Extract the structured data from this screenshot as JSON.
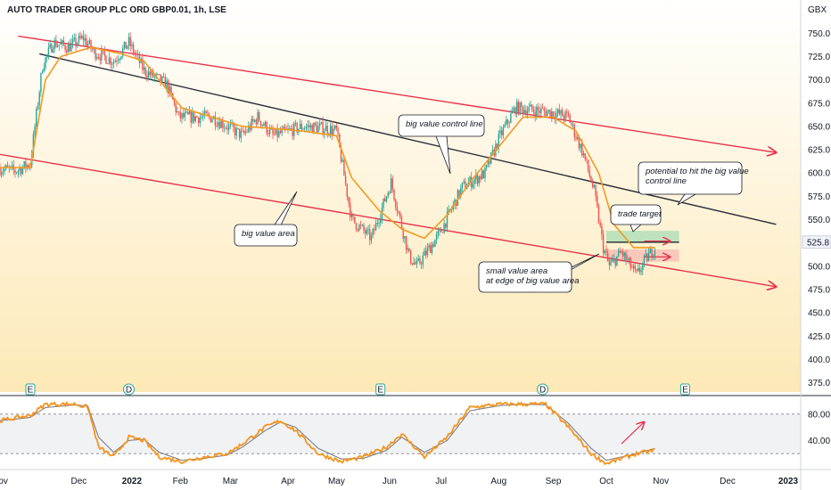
{
  "title": "AUTO TRADER GROUP PLC ORD GBP0.01, 1h, LSE",
  "currency": "GBX",
  "price_label": "525.8",
  "colors": {
    "up": "#26a69a",
    "down": "#ef5350",
    "ma": "#f29a1f",
    "channel": "#e8314c",
    "control_line": "#2a2e39",
    "stoch_k": "#f7931a",
    "stoch_d": "#7a7f8a",
    "bg_top": "#ffffff",
    "bg_bottom": "#fde9b6"
  },
  "chart_data": [
    {
      "type": "line",
      "title": "AUTO TRADER GROUP PLC ORD GBP0.01, 1h, LSE",
      "ylabel": "GBX",
      "ylim": [
        365,
        780
      ],
      "yticks": [
        750.0,
        725.0,
        700.0,
        675.0,
        650.0,
        625.0,
        600.0,
        575.0,
        550.0,
        525.0,
        500.0,
        475.0,
        450.0,
        425.0,
        400.0,
        375.0
      ],
      "x_tick_labels": [
        "Nov",
        "Dec",
        "2022",
        "Feb",
        "Mar",
        "Apr",
        "May",
        "Jun",
        "Jul",
        "Aug",
        "Sep",
        "Oct",
        "Nov",
        "Dec",
        "2023"
      ],
      "x_tick_index": [
        0,
        52,
        87,
        119,
        152,
        190,
        222,
        257,
        291,
        329,
        365,
        400,
        436,
        480,
        520
      ],
      "last_price": 525.8,
      "series": [
        {
          "kind": "price",
          "anchors": [
            [
              0,
              605
            ],
            [
              10,
              602
            ],
            [
              20,
              610
            ],
            [
              23,
              650
            ],
            [
              28,
              715
            ],
            [
              35,
              740
            ],
            [
              45,
              735
            ],
            [
              55,
              745
            ],
            [
              62,
              730
            ],
            [
              75,
              720
            ],
            [
              85,
              740
            ],
            [
              95,
              710
            ],
            [
              110,
              695
            ],
            [
              118,
              660
            ],
            [
              128,
              660
            ],
            [
              140,
              660
            ],
            [
              150,
              650
            ],
            [
              160,
              640
            ],
            [
              170,
              660
            ],
            [
              180,
              640
            ],
            [
              200,
              650
            ],
            [
              215,
              648
            ],
            [
              222,
              645
            ],
            [
              232,
              550
            ],
            [
              245,
              530
            ],
            [
              258,
              590
            ],
            [
              270,
              510
            ],
            [
              275,
              500
            ],
            [
              290,
              535
            ],
            [
              305,
              585
            ],
            [
              320,
              600
            ],
            [
              330,
              640
            ],
            [
              340,
              670
            ],
            [
              350,
              668
            ],
            [
              365,
              665
            ],
            [
              375,
              660
            ],
            [
              385,
              620
            ],
            [
              392,
              580
            ],
            [
              398,
              520
            ],
            [
              402,
              500
            ],
            [
              410,
              515
            ],
            [
              420,
              490
            ],
            [
              425,
              505
            ],
            [
              432,
              520
            ]
          ]
        },
        {
          "kind": "moving_average",
          "anchors": [
            [
              0,
              606
            ],
            [
              20,
              606
            ],
            [
              30,
              700
            ],
            [
              40,
              725
            ],
            [
              60,
              735
            ],
            [
              80,
              728
            ],
            [
              95,
              720
            ],
            [
              110,
              690
            ],
            [
              120,
              670
            ],
            [
              140,
              660
            ],
            [
              160,
              650
            ],
            [
              180,
              648
            ],
            [
              200,
              645
            ],
            [
              222,
              640
            ],
            [
              232,
              595
            ],
            [
              250,
              560
            ],
            [
              265,
              540
            ],
            [
              280,
              530
            ],
            [
              295,
              555
            ],
            [
              310,
              590
            ],
            [
              330,
              630
            ],
            [
              345,
              660
            ],
            [
              365,
              660
            ],
            [
              380,
              645
            ],
            [
              395,
              600
            ],
            [
              405,
              545
            ],
            [
              418,
              520
            ],
            [
              432,
              520
            ]
          ]
        }
      ],
      "channel": {
        "upper": [
          [
            12,
            747
          ],
          [
            512,
            622
          ]
        ],
        "lower": [
          [
            0,
            620
          ],
          [
            512,
            478
          ]
        ],
        "center": [
          [
            26,
            728
          ],
          [
            512,
            545
          ]
        ]
      },
      "zones": {
        "target": [
          525,
          538
        ],
        "stop": [
          505,
          518
        ]
      },
      "annotations": [
        "big value control line",
        "big value area",
        "small value area at edge of big value area",
        "trade target",
        "potential to hit the big value control line"
      ],
      "event_markers": [
        {
          "label": "E",
          "x_index": 20
        },
        {
          "label": "D",
          "x_index": 85
        },
        {
          "label": "E",
          "x_index": 251
        },
        {
          "label": "D",
          "x_index": 358
        },
        {
          "label": "E",
          "x_index": 452
        }
      ]
    },
    {
      "type": "line",
      "title": "",
      "ylim": [
        0,
        100
      ],
      "yticks": [
        80.0,
        40.0
      ],
      "series": [
        {
          "kind": "stoch_k",
          "anchors": [
            [
              0,
              70
            ],
            [
              20,
              78
            ],
            [
              30,
              95
            ],
            [
              50,
              95
            ],
            [
              58,
              90
            ],
            [
              65,
              30
            ],
            [
              75,
              15
            ],
            [
              85,
              45
            ],
            [
              95,
              40
            ],
            [
              105,
              15
            ],
            [
              120,
              8
            ],
            [
              135,
              15
            ],
            [
              150,
              20
            ],
            [
              160,
              35
            ],
            [
              175,
              60
            ],
            [
              185,
              70
            ],
            [
              195,
              55
            ],
            [
              210,
              20
            ],
            [
              225,
              8
            ],
            [
              240,
              15
            ],
            [
              255,
              30
            ],
            [
              265,
              50
            ],
            [
              280,
              15
            ],
            [
              295,
              45
            ],
            [
              310,
              90
            ],
            [
              330,
              95
            ],
            [
              345,
              95
            ],
            [
              360,
              95
            ],
            [
              375,
              60
            ],
            [
              390,
              20
            ],
            [
              400,
              5
            ],
            [
              420,
              20
            ],
            [
              432,
              25
            ]
          ]
        },
        {
          "kind": "stoch_d",
          "anchors": [
            [
              0,
              70
            ],
            [
              20,
              75
            ],
            [
              30,
              90
            ],
            [
              50,
              94
            ],
            [
              58,
              92
            ],
            [
              65,
              45
            ],
            [
              75,
              22
            ],
            [
              85,
              40
            ],
            [
              95,
              42
            ],
            [
              105,
              22
            ],
            [
              120,
              10
            ],
            [
              135,
              13
            ],
            [
              150,
              18
            ],
            [
              160,
              30
            ],
            [
              175,
              55
            ],
            [
              185,
              68
            ],
            [
              195,
              60
            ],
            [
              210,
              28
            ],
            [
              225,
              12
            ],
            [
              240,
              13
            ],
            [
              255,
              25
            ],
            [
              265,
              45
            ],
            [
              280,
              22
            ],
            [
              295,
              40
            ],
            [
              310,
              85
            ],
            [
              330,
              93
            ],
            [
              345,
              95
            ],
            [
              360,
              94
            ],
            [
              375,
              66
            ],
            [
              390,
              28
            ],
            [
              400,
              10
            ],
            [
              420,
              20
            ],
            [
              432,
              28
            ]
          ]
        }
      ],
      "levels": {
        "upper": 80,
        "lower": 20
      }
    }
  ]
}
